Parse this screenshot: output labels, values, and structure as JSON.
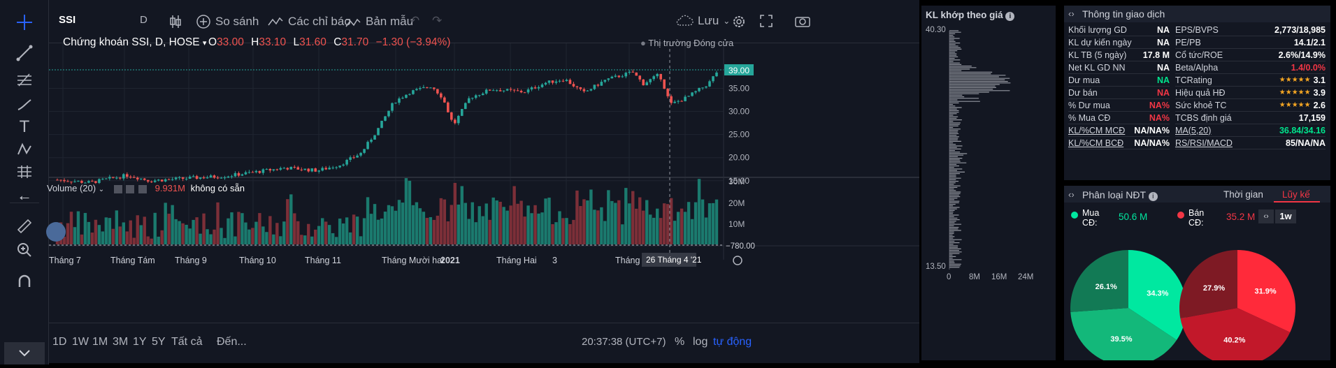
{
  "toolbar": {
    "symbol": "SSI",
    "interval": "D",
    "compare": "So sánh",
    "indicators": "Các chỉ báo",
    "templates": "Bản mẫu",
    "save": "Lưu"
  },
  "legend": {
    "title": "Chứng khoán SSI, D, HOSE",
    "o_label": "O",
    "o": "33.00",
    "h_label": "H",
    "h": "33.10",
    "l_label": "L",
    "l": "31.60",
    "c_label": "C",
    "c": "31.70",
    "chg": "−1.30 (−3.94%)",
    "market": "Thị trường Đóng cửa"
  },
  "price_axis": {
    "labels": [
      "39.00",
      "35.00",
      "30.00",
      "25.00",
      "20.00",
      "15.00"
    ],
    "current": "39.00"
  },
  "volume": {
    "title": "Volume (20)",
    "value": "9.931M",
    "status": "không có sẵn",
    "axis": [
      "30M",
      "20M",
      "10M"
    ],
    "neg": "−780.00"
  },
  "time_axis": {
    "labels": [
      "Tháng 7",
      "Tháng Tám",
      "Tháng 9",
      "Tháng 10",
      "Tháng 11",
      "Tháng Mười hai",
      "2021",
      "Tháng Hai",
      "3",
      "Tháng 4",
      "m"
    ],
    "crosshair": "26 Tháng 4 '21"
  },
  "footer": {
    "ranges": [
      "1D",
      "1W",
      "1M",
      "3M",
      "1Y",
      "5Y",
      "Tất cả"
    ],
    "goto": "Đến...",
    "time": "20:37:38 (UTC+7)",
    "pct": "%",
    "log": "log",
    "auto": "tự động"
  },
  "vp": {
    "title": "KL khớp theo giá",
    "top": "40.30",
    "bottom": "13.50",
    "axis": [
      "0",
      "8M",
      "16M",
      "24M"
    ]
  },
  "info": {
    "title": "Thông tin giao dịch",
    "left": [
      {
        "k": "Khối lượng GD",
        "v": "NA",
        "c": "#fff"
      },
      {
        "k": "KL dự kiến ngày",
        "v": "NA",
        "c": "#fff"
      },
      {
        "k": "KL TB (5 ngày)",
        "v": "17.8 M",
        "c": "#fff"
      },
      {
        "k": "Net KL GD NN",
        "v": "NA",
        "c": "#fff"
      },
      {
        "k": "Dư mua",
        "v": "NA",
        "c": "#00e38c"
      },
      {
        "k": "Dư bán",
        "v": "NA",
        "c": "#f23645"
      },
      {
        "k": "% Dư mua",
        "v": "NA%",
        "c": "#f23645"
      },
      {
        "k": "% Mua CĐ",
        "v": "NA%",
        "c": "#f23645"
      },
      {
        "k": "KL/%CM MCĐ",
        "v": "NA/NA%",
        "c": "#fff"
      },
      {
        "k": "KL/%CM BCĐ",
        "v": "NA/NA%",
        "c": "#fff"
      }
    ],
    "right": [
      {
        "k": "EPS/BVPS",
        "v": "2,773/18,985",
        "c": "#fff"
      },
      {
        "k": "PE/PB",
        "v": "14.1/2.1",
        "c": "#fff"
      },
      {
        "k": "Cổ tức/ROE",
        "v": "2.6%/14.9%",
        "c": "#fff"
      },
      {
        "k": "Beta/Alpha",
        "v": "1.4/0.0%",
        "c": "#f23645"
      },
      {
        "k": "TCRating",
        "v": "3.1",
        "c": "#fff",
        "stars": "★★★★★"
      },
      {
        "k": "Hiệu quả HĐ",
        "v": "3.9",
        "c": "#fff",
        "stars": "★★★★★"
      },
      {
        "k": "Sức khoẻ TC",
        "v": "2.6",
        "c": "#fff",
        "stars": "★★★★★"
      },
      {
        "k": "TCBS định giá",
        "v": "17,159",
        "c": "#fff"
      },
      {
        "k": "MA(5,20)",
        "v": "36.84/34.16",
        "c": "#00e38c"
      },
      {
        "k": "RS/RSI/MACD",
        "v": "85/NA/NA",
        "c": "#fff"
      }
    ]
  },
  "investor": {
    "title": "Phân loại NĐT",
    "tab_time": "Thời gian",
    "tab_cum": "Lũy kế",
    "buy_label": "Mua CĐ:",
    "buy": "50.6 M",
    "sell_label": "Bán CĐ:",
    "sell": "35.2 M",
    "period": "1w",
    "buy_pie": [
      {
        "v": 34.3,
        "label": "34.3%",
        "color": "#00e8a0"
      },
      {
        "v": 39.5,
        "label": "39.5%",
        "color": "#13b87a"
      },
      {
        "v": 26.1,
        "label": "26.1%",
        "color": "#127a55"
      }
    ],
    "sell_pie": [
      {
        "v": 31.9,
        "label": "31.9%",
        "color": "#ff2a3a"
      },
      {
        "v": 40.2,
        "label": "40.2%",
        "color": "#c2182a"
      },
      {
        "v": 27.9,
        "label": "27.9%",
        "color": "#7e1a24"
      }
    ]
  },
  "colors": {
    "up": "#26a69a",
    "down": "#ef5350",
    "accent": "#2962ff"
  }
}
